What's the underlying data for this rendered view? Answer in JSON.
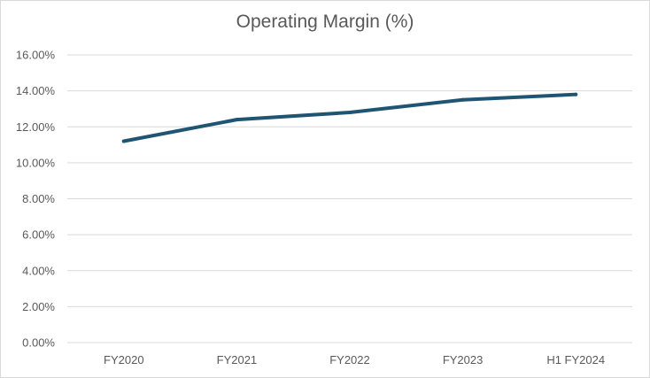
{
  "chart_data": {
    "type": "line",
    "title": "Operating Margin (%)",
    "xlabel": "",
    "ylabel": "",
    "categories": [
      "FY2020",
      "FY2021",
      "FY2022",
      "FY2023",
      "H1 FY2024"
    ],
    "series": [
      {
        "values": [
          11.2,
          12.4,
          12.8,
          13.5,
          13.8
        ],
        "color": "#1f5573"
      }
    ],
    "ylim": [
      0,
      16
    ],
    "yticks": [
      "0.00%",
      "2.00%",
      "4.00%",
      "6.00%",
      "8.00%",
      "10.00%",
      "12.00%",
      "14.00%",
      "16.00%"
    ],
    "grid": true,
    "legend": "none",
    "colors": {
      "gridline": "#d9d9d9",
      "text": "#595959",
      "line": "#1f5573"
    }
  }
}
